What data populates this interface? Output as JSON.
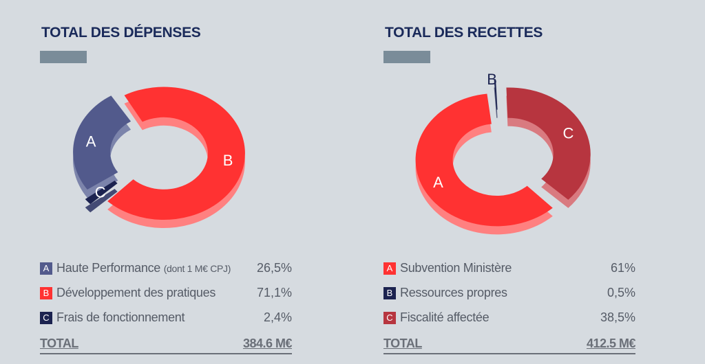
{
  "colors": {
    "title": "#1a2a5a",
    "title_bar": "#7a8c99",
    "text": "#555b66",
    "total": "#6a6f78"
  },
  "chart_data": [
    {
      "type": "pie",
      "title": "TOTAL DES DÉPENSES",
      "slices": [
        {
          "letter": "A",
          "label": "Haute Performance",
          "sublabel": "(dont 1 M€ CPJ)",
          "value": 26.5,
          "value_text": "26,5%",
          "color": "#525a8c",
          "side": "#7c84ab",
          "label_color": "#ffffff",
          "label_outside": false
        },
        {
          "letter": "B",
          "label": "Développement des pratiques",
          "sublabel": "",
          "value": 71.1,
          "value_text": "71,1%",
          "color": "#ff3232",
          "side": "#ff8080",
          "label_color": "#ffffff",
          "label_outside": false
        },
        {
          "letter": "C",
          "label": "Frais de fonctionnement",
          "sublabel": "",
          "value": 2.4,
          "value_text": "2,4%",
          "color": "#1c2350",
          "side": "#434a74",
          "label_color": "#ffffff",
          "label_outside": false
        }
      ],
      "total_label": "TOTAL",
      "total_value": "384.6 M€"
    },
    {
      "type": "pie",
      "title": "TOTAL DES RECETTES",
      "slices": [
        {
          "letter": "A",
          "label": "Subvention Ministère",
          "sublabel": "",
          "value": 61,
          "value_text": "61%",
          "color": "#ff3232",
          "side": "#ff8080",
          "label_color": "#ffffff",
          "label_outside": false
        },
        {
          "letter": "B",
          "label": "Ressources propres",
          "sublabel": "",
          "value": 0.5,
          "value_text": "0,5%",
          "color": "#1c2350",
          "side": "#5a6080",
          "label_color": "#1c2350",
          "label_outside": true
        },
        {
          "letter": "C",
          "label": "Fiscalité affectée",
          "sublabel": "",
          "value": 38.5,
          "value_text": "38,5%",
          "color": "#b7353f",
          "side": "#d97a80",
          "label_color": "#ffffff",
          "label_outside": false
        }
      ],
      "total_label": "TOTAL",
      "total_value": "412.5 M€"
    }
  ]
}
